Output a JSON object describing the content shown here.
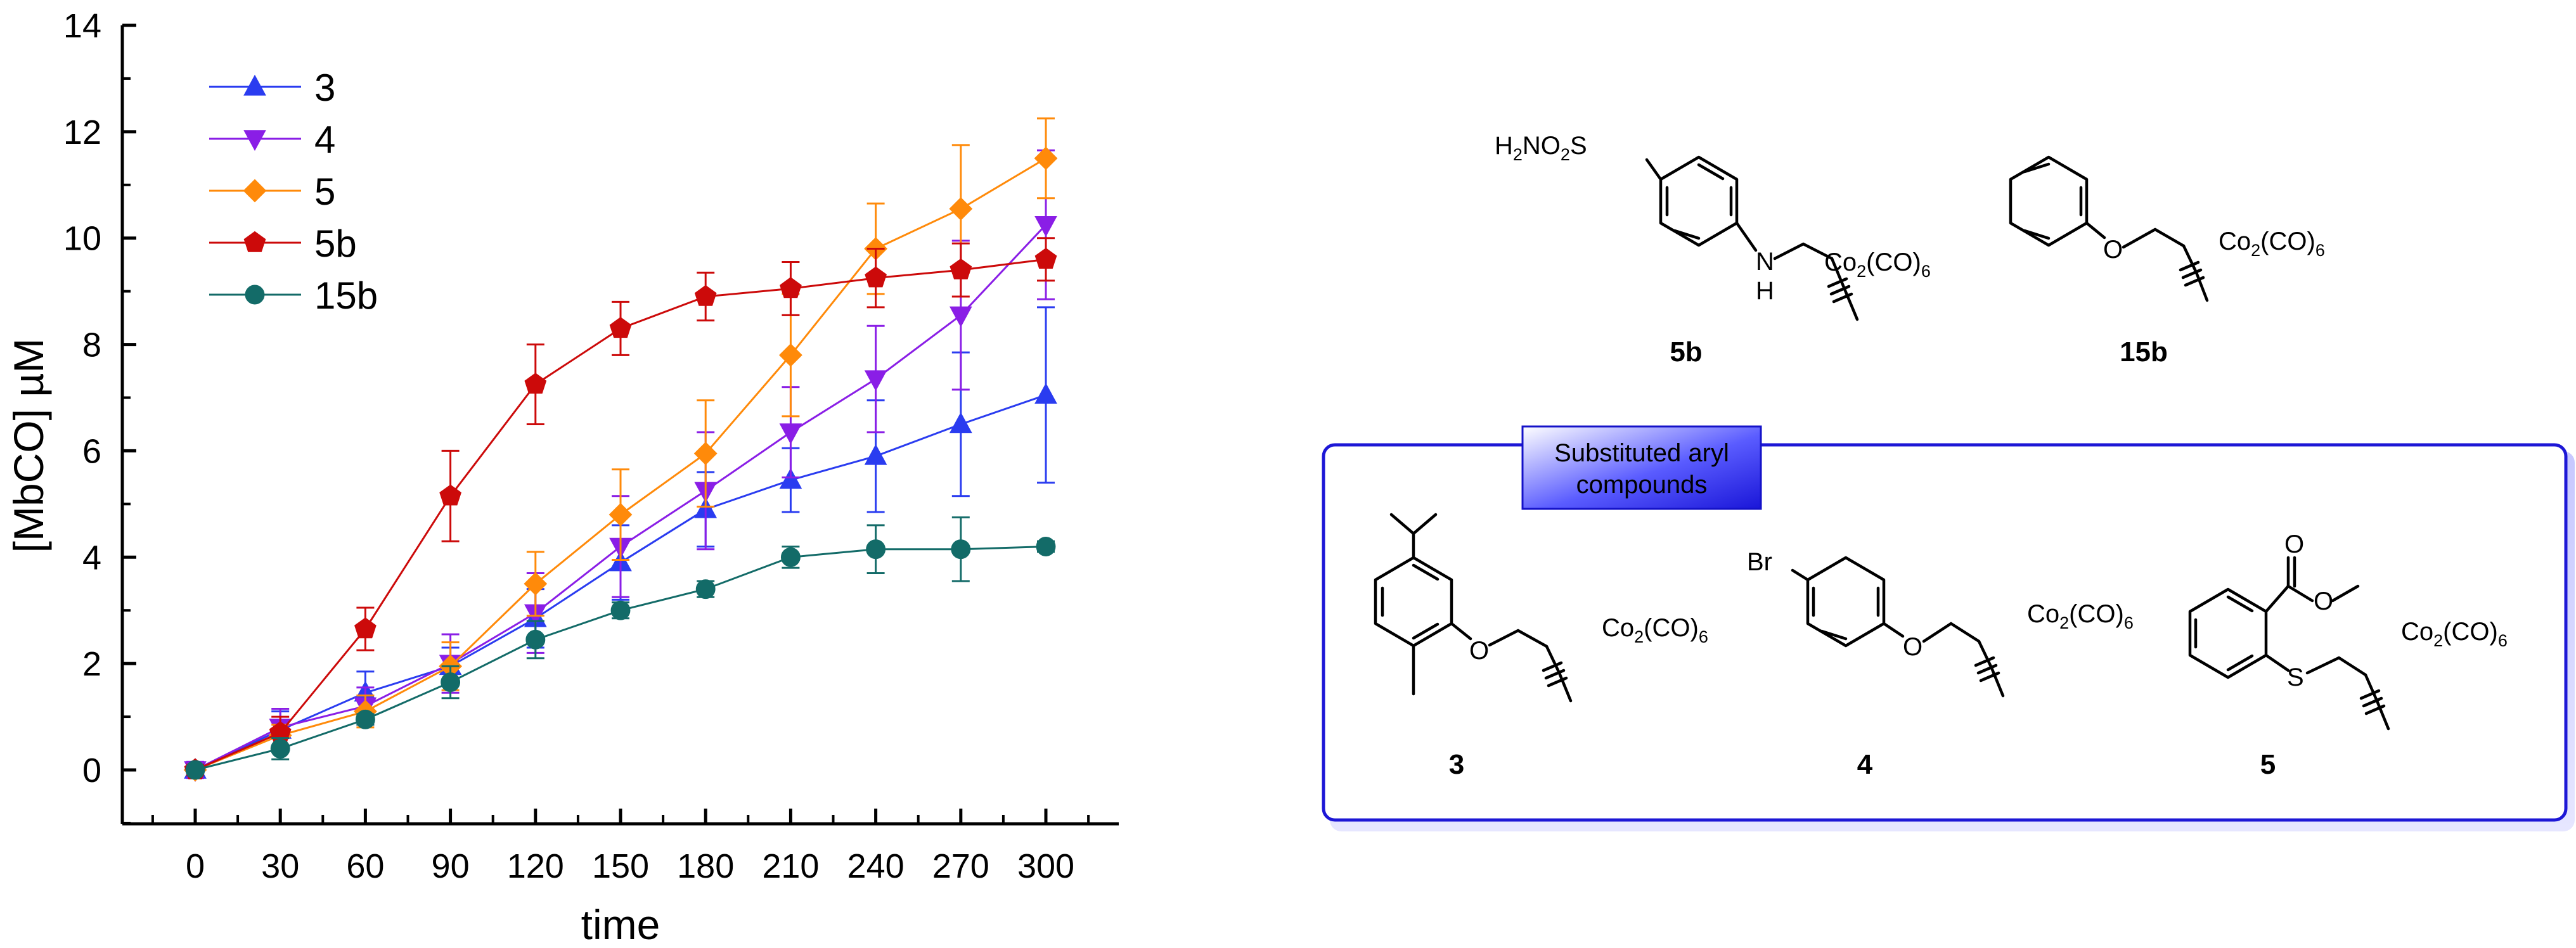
{
  "chart_data": {
    "type": "line",
    "xlabel": "time",
    "ylabel": "[MbCO] µM",
    "xlim": [
      -30,
      330
    ],
    "ylim": [
      -1,
      14
    ],
    "x": [
      0,
      30,
      60,
      90,
      120,
      150,
      180,
      210,
      240,
      270,
      300
    ],
    "x_ticks": [
      "0",
      "30",
      "60",
      "90",
      "120",
      "150",
      "180",
      "210",
      "240",
      "270",
      "300"
    ],
    "y_ticks": [
      "0",
      "2",
      "4",
      "6",
      "8",
      "10",
      "12",
      "14"
    ],
    "grid": false,
    "legend_position": "top-left",
    "series": [
      {
        "name": "3",
        "color": "#2a3cf0",
        "marker": "triangle-up",
        "values": [
          0,
          0.75,
          1.45,
          1.95,
          2.85,
          3.9,
          4.9,
          5.45,
          5.9,
          6.5,
          7.05
        ],
        "errors": [
          0.15,
          0.35,
          0.4,
          0.35,
          0.55,
          0.7,
          0.7,
          0.6,
          1.05,
          1.35,
          1.65
        ]
      },
      {
        "name": "4",
        "color": "#8a1ee6",
        "marker": "triangle-down",
        "values": [
          0,
          0.8,
          1.2,
          2.0,
          2.95,
          4.2,
          5.25,
          6.35,
          7.35,
          8.55,
          10.25
        ],
        "errors": [
          0.15,
          0.35,
          0.35,
          0.55,
          0.75,
          0.95,
          1.1,
          0.85,
          1.0,
          1.4,
          1.4
        ]
      },
      {
        "name": "5",
        "color": "#ff8a0a",
        "marker": "diamond",
        "values": [
          0,
          0.65,
          1.1,
          1.95,
          3.5,
          4.8,
          5.95,
          7.8,
          9.8,
          10.55,
          11.5
        ],
        "errors": [
          0.1,
          0.2,
          0.3,
          0.45,
          0.6,
          0.85,
          1.0,
          1.15,
          0.85,
          1.2,
          0.75
        ]
      },
      {
        "name": "5b",
        "color": "#cc0a0a",
        "marker": "pentagon",
        "values": [
          0,
          0.7,
          2.65,
          5.15,
          7.25,
          8.3,
          8.9,
          9.05,
          9.25,
          9.4,
          9.6
        ],
        "errors": [
          0.1,
          0.3,
          0.4,
          0.85,
          0.75,
          0.5,
          0.45,
          0.5,
          0.55,
          0.5,
          0.4
        ]
      },
      {
        "name": "15b",
        "color": "#136b68",
        "marker": "circle",
        "values": [
          0,
          0.4,
          0.95,
          1.65,
          2.45,
          3.0,
          3.4,
          4.0,
          4.15,
          4.15,
          4.2
        ],
        "errors": [
          0.05,
          0.2,
          0.1,
          0.3,
          0.35,
          0.15,
          0.15,
          0.2,
          0.45,
          0.6,
          0.1
        ]
      }
    ]
  },
  "structures": {
    "labels": {
      "s5b": "5b",
      "s15b": "15b",
      "s3": "3",
      "s4": "4",
      "s5": "5"
    },
    "box_title_line1": "Substituted aryl",
    "box_title_line2": "compounds",
    "atoms": {
      "h2no2s_1": "H",
      "h2no2s_2": "2",
      "h2no2s_3": "NO",
      "h2no2s_4": "2",
      "h2no2s_5": "S",
      "n": "N",
      "h": "H",
      "o": "O",
      "s": "S",
      "br": "Br",
      "co_1": "Co",
      "co_2": "2",
      "co_3": "(CO)",
      "co_4": "6"
    }
  }
}
